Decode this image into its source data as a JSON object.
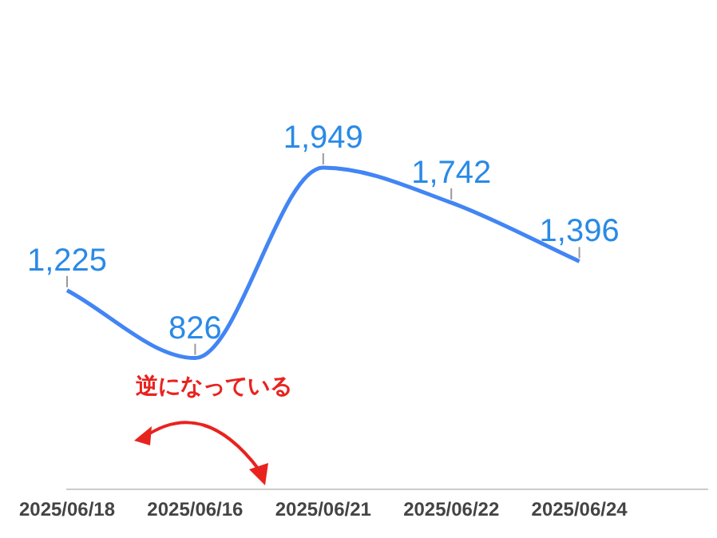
{
  "chart_data": {
    "type": "line",
    "categories": [
      "2025/06/18",
      "2025/06/16",
      "2025/06/21",
      "2025/06/22",
      "2025/06/24",
      null
    ],
    "series": [
      {
        "color": "#4285f4",
        "values": [
          1225,
          826,
          1949,
          1742,
          1396,
          null
        ],
        "value_labels": [
          "1,225",
          "826",
          "1,949",
          "1,742",
          "1,396",
          null
        ]
      }
    ],
    "marker": "none",
    "annotations": [
      "逆になっている"
    ]
  }
}
